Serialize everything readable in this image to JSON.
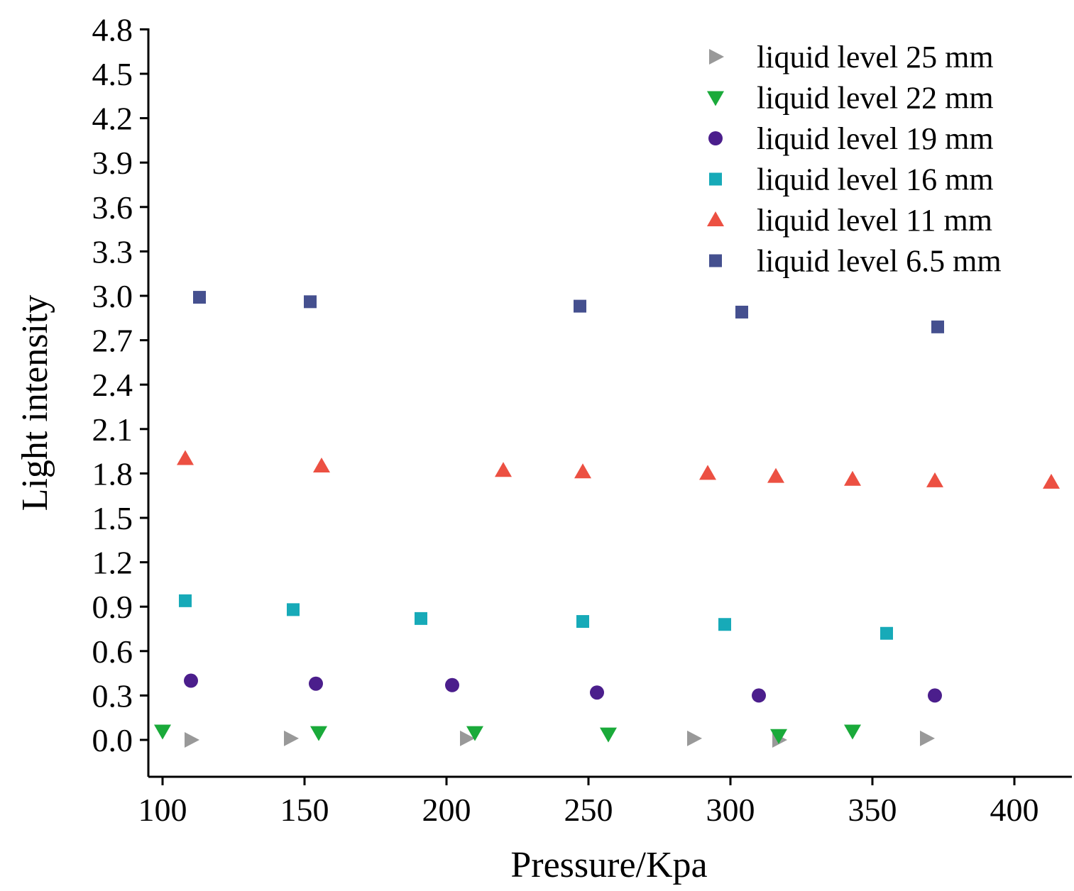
{
  "chart_data": {
    "type": "scatter",
    "title": "",
    "xlabel": "Pressure/Kpa",
    "ylabel": "Light intensity",
    "xlim": [
      95,
      420
    ],
    "ylim": [
      -0.25,
      4.8
    ],
    "xticks": [
      100,
      150,
      200,
      250,
      300,
      350,
      400
    ],
    "yticks": [
      "0.0",
      "0.3",
      "0.6",
      "0.9",
      "1.2",
      "1.5",
      "1.8",
      "2.1",
      "2.4",
      "2.7",
      "3.0",
      "3.3",
      "3.6",
      "3.9",
      "4.2",
      "4.5",
      "4.8"
    ],
    "grid": false,
    "legend_position": "top-right",
    "series": [
      {
        "name": "liquid level 25 mm",
        "marker": "triangle-right",
        "color": "#999999",
        "points": [
          [
            110,
            0.0
          ],
          [
            145,
            0.01
          ],
          [
            207,
            0.01
          ],
          [
            287,
            0.01
          ],
          [
            317,
            0.0
          ],
          [
            369,
            0.01
          ]
        ]
      },
      {
        "name": "liquid level 22 mm",
        "marker": "triangle-down",
        "color": "#1aaa3a",
        "points": [
          [
            100,
            0.06
          ],
          [
            155,
            0.05
          ],
          [
            210,
            0.05
          ],
          [
            257,
            0.04
          ],
          [
            317,
            0.03
          ],
          [
            343,
            0.06
          ]
        ]
      },
      {
        "name": "liquid level 19 mm",
        "marker": "circle",
        "color": "#4b1e8c",
        "points": [
          [
            110,
            0.4
          ],
          [
            154,
            0.38
          ],
          [
            202,
            0.37
          ],
          [
            253,
            0.32
          ],
          [
            310,
            0.3
          ],
          [
            372,
            0.3
          ]
        ]
      },
      {
        "name": "liquid level 16 mm",
        "marker": "square",
        "color": "#17aab8",
        "points": [
          [
            108,
            0.94
          ],
          [
            146,
            0.88
          ],
          [
            191,
            0.82
          ],
          [
            248,
            0.8
          ],
          [
            298,
            0.78
          ],
          [
            355,
            0.72
          ]
        ]
      },
      {
        "name": "liquid level 11 mm",
        "marker": "triangle-up",
        "color": "#ec5042",
        "points": [
          [
            108,
            1.9
          ],
          [
            156,
            1.85
          ],
          [
            220,
            1.82
          ],
          [
            248,
            1.81
          ],
          [
            292,
            1.8
          ],
          [
            316,
            1.78
          ],
          [
            343,
            1.76
          ],
          [
            372,
            1.75
          ],
          [
            413,
            1.74
          ]
        ]
      },
      {
        "name": "liquid level 6.5 mm",
        "marker": "square",
        "color": "#45508f",
        "points": [
          [
            113,
            2.99
          ],
          [
            152,
            2.96
          ],
          [
            247,
            2.93
          ],
          [
            304,
            2.89
          ],
          [
            373,
            2.79
          ]
        ]
      }
    ]
  }
}
